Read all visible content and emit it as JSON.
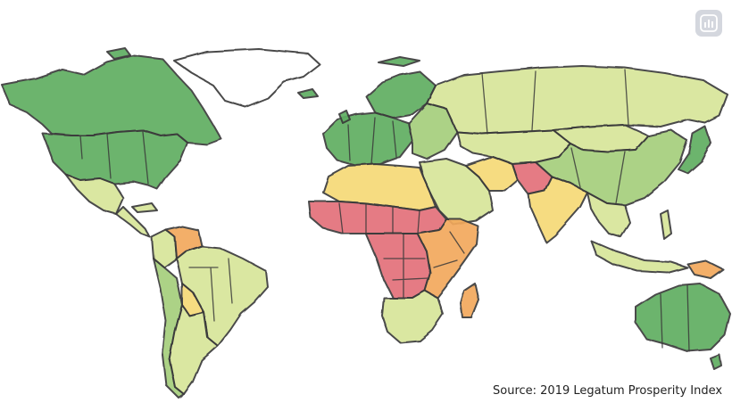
{
  "map": {
    "source": "Source: 2019 Legatum Prosperity Index",
    "icon": "bar-chart-app-icon",
    "scale_colors": {
      "very_high": "#5fae62",
      "high": "#a5cf7c",
      "mid_high": "#d7e59a",
      "mid": "#f6d977",
      "mid_low": "#f2a95c",
      "low": "#e3707a"
    },
    "regions": [
      {
        "name": "Canada",
        "level": "very_high"
      },
      {
        "name": "United States",
        "level": "very_high"
      },
      {
        "name": "Greenland",
        "level": "none"
      },
      {
        "name": "Mexico",
        "level": "mid_high"
      },
      {
        "name": "Central America",
        "level": "mid_high"
      },
      {
        "name": "Venezuela",
        "level": "mid_low"
      },
      {
        "name": "Colombia",
        "level": "mid_high"
      },
      {
        "name": "Brazil",
        "level": "mid_high"
      },
      {
        "name": "Bolivia",
        "level": "mid"
      },
      {
        "name": "Argentina",
        "level": "mid_high"
      },
      {
        "name": "Chile",
        "level": "high"
      },
      {
        "name": "Western Europe",
        "level": "very_high"
      },
      {
        "name": "Scandinavia",
        "level": "very_high"
      },
      {
        "name": "Eastern Europe",
        "level": "high"
      },
      {
        "name": "Russia",
        "level": "mid_high"
      },
      {
        "name": "Central Asia",
        "level": "mid_high"
      },
      {
        "name": "Middle East",
        "level": "mid_high"
      },
      {
        "name": "Iran",
        "level": "mid"
      },
      {
        "name": "Afghanistan and Pakistan",
        "level": "low"
      },
      {
        "name": "India",
        "level": "mid"
      },
      {
        "name": "China",
        "level": "high"
      },
      {
        "name": "Mongolia",
        "level": "mid_high"
      },
      {
        "name": "Southeast Asia",
        "level": "mid_high"
      },
      {
        "name": "Japan",
        "level": "very_high"
      },
      {
        "name": "Indonesia",
        "level": "mid_high"
      },
      {
        "name": "Papua New Guinea",
        "level": "mid_low"
      },
      {
        "name": "Australia",
        "level": "very_high"
      },
      {
        "name": "New Zealand",
        "level": "very_high"
      },
      {
        "name": "North Africa",
        "level": "mid"
      },
      {
        "name": "Sahel",
        "level": "low"
      },
      {
        "name": "Central Africa",
        "level": "low"
      },
      {
        "name": "East Africa",
        "level": "mid_low"
      },
      {
        "name": "Southern Africa",
        "level": "mid_high"
      },
      {
        "name": "Madagascar",
        "level": "mid_low"
      }
    ]
  }
}
